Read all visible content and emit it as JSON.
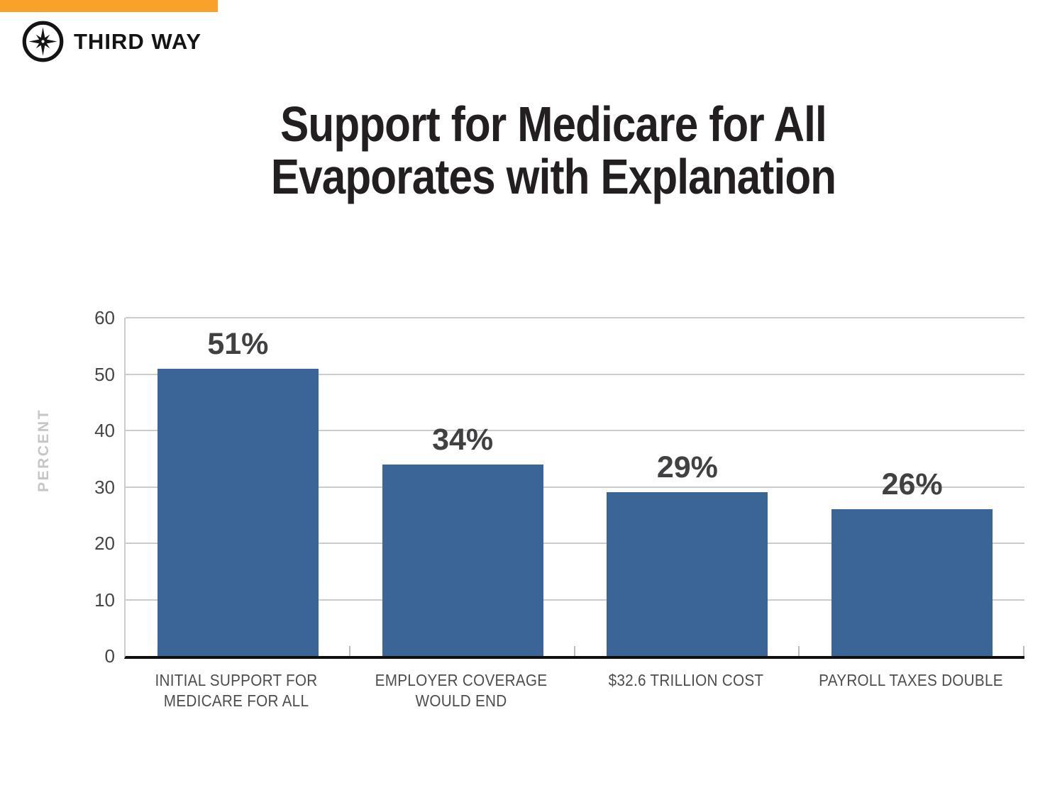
{
  "brand": {
    "name": "THIRD WAY",
    "accent_color": "#F9A22B",
    "logo_icon": "compass-icon"
  },
  "title_lines": [
    "Support for Medicare for All",
    "Evaporates with Explanation"
  ],
  "chart_data": {
    "type": "bar",
    "title": "Support for Medicare for All Evaporates with Explanation",
    "categories": [
      "INITIAL SUPPORT FOR MEDICARE FOR ALL",
      "EMPLOYER COVERAGE WOULD END",
      "$32.6 TRILLION COST",
      "PAYROLL TAXES DOUBLE"
    ],
    "category_lines": [
      [
        "INITIAL SUPPORT FOR",
        "MEDICARE FOR ALL"
      ],
      [
        "EMPLOYER COVERAGE",
        "WOULD END"
      ],
      [
        "$32.6 TRILLION COST"
      ],
      [
        "PAYROLL TAXES DOUBLE"
      ]
    ],
    "values": [
      51,
      34,
      29,
      26
    ],
    "value_labels": [
      "51%",
      "34%",
      "29%",
      "26%"
    ],
    "xlabel": "",
    "ylabel": "PERCENT",
    "ylim": [
      0,
      60
    ],
    "yticks": [
      0,
      10,
      20,
      30,
      40,
      50,
      60
    ],
    "grid": true,
    "legend_position": "none",
    "bar_color": "#3B6597",
    "value_label_color": "#414042",
    "gridline_color": "#CBCBCB",
    "axis_label_color": "#454545",
    "category_label_color": "#4D4D4D"
  }
}
